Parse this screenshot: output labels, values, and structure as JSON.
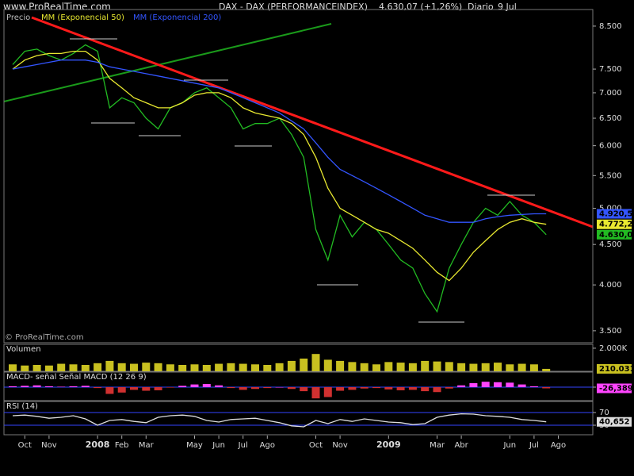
{
  "header": {
    "title": "DAX - DAX (PERFORMANCEINDEX)",
    "quote": "4.630,07 (+1,26%)",
    "period": "Diario",
    "date": "9 Jul",
    "site": "www.ProRealTime.com",
    "copyright": "© ProRealTime.com"
  },
  "chart_data": [
    {
      "type": "line",
      "log_scale": true,
      "categories": [
        null,
        "Oct",
        null,
        "Nov",
        null,
        null,
        null,
        "2008",
        null,
        "Feb",
        null,
        "Mar",
        null,
        null,
        null,
        "May",
        null,
        "Jun",
        null,
        "Jul",
        null,
        "Ago",
        null,
        null,
        null,
        "Oct",
        null,
        "Nov",
        null,
        null,
        null,
        "2009",
        null,
        null,
        null,
        "Mar",
        null,
        "Abr",
        null,
        null,
        null,
        "Jun",
        null,
        "Jul",
        null,
        "Ago"
      ],
      "ylim": [
        3380,
        8880
      ],
      "yticks": [
        {
          "value": 8500,
          "label": "8.500"
        },
        {
          "value": 7500,
          "label": "7.500"
        },
        {
          "value": 7000,
          "label": "7.000"
        },
        {
          "value": 6500,
          "label": "6.500"
        },
        {
          "value": 6000,
          "label": "6.000"
        },
        {
          "value": 5500,
          "label": "5.500"
        },
        {
          "value": 5000,
          "label": "5.000"
        },
        {
          "value": 4500,
          "label": "4.500"
        },
        {
          "value": 4000,
          "label": "4.000"
        },
        {
          "value": 3500,
          "label": "3.500"
        }
      ],
      "series": [
        {
          "name": "Precio",
          "color": "#22bb22",
          "values": [
            7600,
            7900,
            7950,
            7800,
            7700,
            7850,
            8050,
            7900,
            6700,
            6900,
            6800,
            6500,
            6300,
            6700,
            6800,
            7000,
            7100,
            6900,
            6700,
            6300,
            6400,
            6400,
            6500,
            6200,
            5800,
            4700,
            4300,
            4900,
            4600,
            4800,
            4700,
            4500,
            4300,
            4200,
            3900,
            3700,
            4200,
            4500,
            4800,
            5000,
            4900,
            5100,
            4900,
            4800,
            4630.07,
            null
          ],
          "value_labels": [
            null,
            null,
            null,
            null,
            null,
            null,
            null,
            null,
            null,
            null,
            null,
            null,
            null,
            null,
            null,
            null,
            null,
            null,
            null,
            null,
            null,
            null,
            null,
            null,
            null,
            null,
            null,
            null,
            null,
            null,
            null,
            null,
            null,
            null,
            null,
            null,
            null,
            null,
            null,
            null,
            null,
            null,
            null,
            null,
            "4.630,07",
            null
          ]
        },
        {
          "name": "MM (Exponencial 50)",
          "color": "#e8e830",
          "values": [
            7500,
            7700,
            7800,
            7850,
            7850,
            7900,
            7900,
            7700,
            7300,
            7100,
            6900,
            6800,
            6700,
            6700,
            6800,
            6950,
            7000,
            7000,
            6900,
            6700,
            6600,
            6550,
            6500,
            6400,
            6200,
            5800,
            5300,
            5000,
            4900,
            4800,
            4700,
            4650,
            4550,
            4450,
            4300,
            4150,
            4050,
            4200,
            4400,
            4550,
            4700,
            4800,
            4850,
            4800,
            4772.2,
            null
          ],
          "value_labels": [
            null,
            null,
            null,
            null,
            null,
            null,
            null,
            null,
            null,
            null,
            null,
            null,
            null,
            null,
            null,
            null,
            null,
            null,
            null,
            null,
            null,
            null,
            null,
            null,
            null,
            null,
            null,
            null,
            null,
            null,
            null,
            null,
            null,
            null,
            null,
            null,
            null,
            null,
            null,
            null,
            null,
            null,
            null,
            null,
            "4.772,2",
            null
          ]
        },
        {
          "name": "MM (Exponencial 200)",
          "color": "#3355ff",
          "values": [
            7500,
            7550,
            7600,
            7650,
            7700,
            7700,
            7700,
            7650,
            7550,
            7500,
            7450,
            7400,
            7350,
            7300,
            7250,
            7200,
            7150,
            7100,
            7000,
            6900,
            6800,
            6700,
            6600,
            6450,
            6300,
            6050,
            5800,
            5600,
            5500,
            5400,
            5300,
            5200,
            5100,
            5000,
            4900,
            4850,
            4800,
            4800,
            4800,
            4850,
            4880,
            4900,
            4910,
            4920,
            4920.5,
            null
          ],
          "value_labels": [
            null,
            null,
            null,
            null,
            null,
            null,
            null,
            null,
            null,
            null,
            null,
            null,
            null,
            null,
            null,
            null,
            null,
            null,
            null,
            null,
            null,
            null,
            null,
            null,
            null,
            null,
            null,
            null,
            null,
            null,
            null,
            null,
            null,
            null,
            null,
            null,
            null,
            null,
            null,
            null,
            null,
            null,
            null,
            null,
            "4.920,5",
            null
          ]
        }
      ]
    },
    {
      "type": "bar",
      "title": "Volumen",
      "ylim": [
        0,
        2200
      ],
      "yticks": [
        {
          "value": 2000,
          "label": "2.000K"
        }
      ],
      "series": [
        {
          "name": "Volumen",
          "color": "#c8c020",
          "values": [
            600,
            500,
            550,
            500,
            650,
            600,
            550,
            700,
            900,
            700,
            650,
            750,
            700,
            600,
            550,
            600,
            550,
            650,
            700,
            650,
            600,
            550,
            700,
            900,
            1100,
            1500,
            1000,
            900,
            800,
            700,
            600,
            800,
            750,
            700,
            900,
            850,
            800,
            700,
            650,
            700,
            750,
            600,
            650,
            600,
            210.031,
            null
          ],
          "value_labels": [
            null,
            null,
            null,
            null,
            null,
            null,
            null,
            null,
            null,
            null,
            null,
            null,
            null,
            null,
            null,
            null,
            null,
            null,
            null,
            null,
            null,
            null,
            null,
            null,
            null,
            null,
            null,
            null,
            null,
            null,
            null,
            null,
            null,
            null,
            null,
            null,
            null,
            null,
            null,
            null,
            null,
            null,
            null,
            null,
            "210.031",
            null
          ]
        }
      ]
    },
    {
      "type": "bar",
      "title": "MACD- señal Señal MACD (12 26 9)",
      "ylim": [
        -300,
        300
      ],
      "yticks": [
        0
      ],
      "grid": true,
      "series": [
        {
          "name": "MACD- señal",
          "color": "#ff44ff",
          "values": [
            20,
            30,
            40,
            20,
            10,
            20,
            30,
            -20,
            -150,
            -120,
            -60,
            -80,
            -70,
            -10,
            30,
            60,
            70,
            40,
            -20,
            -60,
            -40,
            -20,
            0,
            -40,
            -90,
            -250,
            -220,
            -80,
            -60,
            -30,
            -20,
            -50,
            -70,
            -60,
            -90,
            -110,
            -30,
            40,
            90,
            120,
            110,
            100,
            60,
            20,
            -26.389,
            null
          ],
          "value_labels": [
            null,
            null,
            null,
            null,
            null,
            null,
            null,
            null,
            null,
            null,
            null,
            null,
            null,
            null,
            null,
            null,
            null,
            null,
            null,
            null,
            null,
            null,
            null,
            null,
            null,
            null,
            null,
            null,
            null,
            null,
            null,
            null,
            null,
            null,
            null,
            null,
            null,
            null,
            null,
            null,
            null,
            null,
            null,
            null,
            "-26,389",
            null
          ]
        }
      ]
    },
    {
      "type": "line",
      "title": "RSI (14)",
      "ylim": [
        0,
        100
      ],
      "yticks": [
        70,
        30
      ],
      "grid": true,
      "series": [
        {
          "name": "RSI",
          "color": "#dddddd",
          "values": [
            60,
            62,
            58,
            52,
            55,
            60,
            50,
            30,
            45,
            48,
            42,
            38,
            55,
            60,
            62,
            58,
            45,
            40,
            48,
            50,
            52,
            45,
            38,
            28,
            25,
            45,
            35,
            48,
            42,
            50,
            45,
            40,
            38,
            32,
            35,
            55,
            62,
            66,
            65,
            60,
            58,
            55,
            48,
            45,
            40.652,
            null
          ],
          "value_labels": [
            null,
            null,
            null,
            null,
            null,
            null,
            null,
            null,
            null,
            null,
            null,
            null,
            null,
            null,
            null,
            null,
            null,
            null,
            null,
            null,
            null,
            null,
            null,
            null,
            null,
            null,
            null,
            null,
            null,
            null,
            null,
            null,
            null,
            null,
            null,
            null,
            null,
            null,
            null,
            null,
            null,
            null,
            null,
            null,
            "40,652",
            null
          ]
        }
      ]
    }
  ]
}
